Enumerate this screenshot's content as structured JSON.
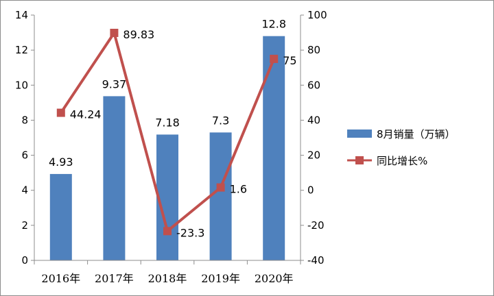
{
  "chart_data": {
    "type": "bar",
    "categories": [
      "2016年",
      "2017年",
      "2018年",
      "2019年",
      "2020年"
    ],
    "series": [
      {
        "name": "8月销量（万辆）",
        "type": "bar",
        "axis": "left",
        "values": [
          4.93,
          9.37,
          7.18,
          7.3,
          12.8
        ],
        "labels": [
          "4.93",
          "9.37",
          "7.18",
          "7.3",
          "12.8"
        ],
        "color": "#4f81bd"
      },
      {
        "name": "同比增长%",
        "type": "line",
        "axis": "right",
        "values": [
          44.24,
          89.83,
          -23.3,
          1.6,
          75
        ],
        "labels": [
          "44.24",
          "89.83",
          "-23.3",
          "1.6",
          "75"
        ],
        "color": "#c0504d"
      }
    ],
    "y_left": {
      "ylim": [
        0,
        14
      ],
      "ticks": [
        "0",
        "2",
        "4",
        "6",
        "8",
        "10",
        "12",
        "14"
      ]
    },
    "y_right": {
      "ylim": [
        -40,
        100
      ],
      "ticks": [
        "-40",
        "-20",
        "0",
        "20",
        "40",
        "60",
        "80",
        "100"
      ]
    },
    "legend_position": "right",
    "grid": false
  }
}
